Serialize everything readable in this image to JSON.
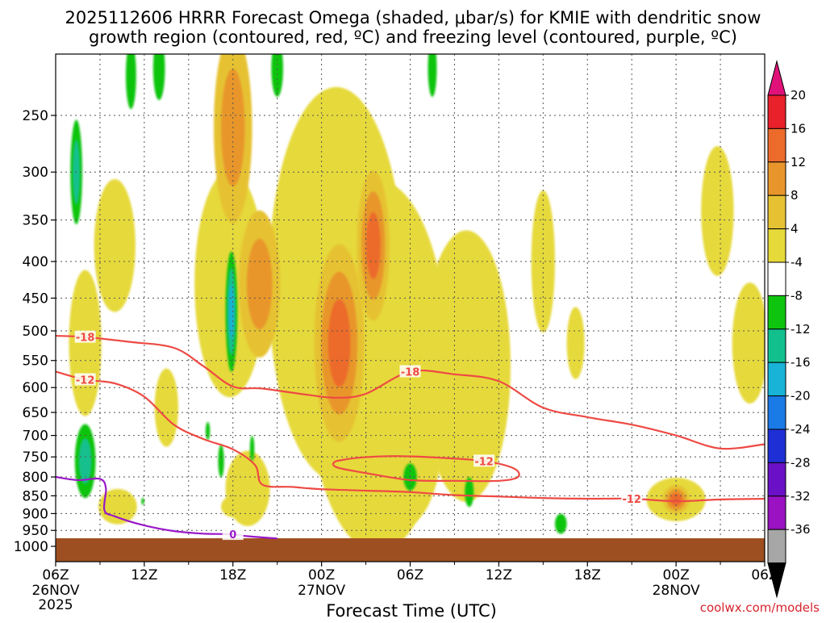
{
  "chart_data": {
    "type": "heatmap",
    "title_line1": "2025112606 HRRR Forecast Omega (shaded, μbar/s) for KMIE with dendritic snow",
    "title_line2": "growth region (contoured, red, ºC) and freezing level (contoured, purple, ºC)",
    "xlabel": "Forecast Time (UTC)",
    "x_forecast_hours": [
      0,
      6,
      12,
      18,
      24,
      30,
      36,
      42,
      48,
      54,
      60
    ],
    "x_tick_labels": [
      "06Z",
      "12Z",
      "18Z",
      "00Z",
      "06Z",
      "12Z",
      "18Z",
      "00Z",
      "06Z"
    ],
    "x_tick_hours": [
      0,
      6,
      12,
      18,
      24,
      30,
      36,
      42,
      48
    ],
    "date_labels": [
      {
        "hour": 0,
        "line1": "26NOV",
        "line2": "2025"
      },
      {
        "hour": 18,
        "line1": "27NOV",
        "line2": ""
      },
      {
        "hour": 42,
        "line1": "28NOV",
        "line2": ""
      }
    ],
    "y_levels_hpa": [
      250,
      300,
      350,
      400,
      450,
      500,
      550,
      600,
      650,
      700,
      750,
      800,
      850,
      900,
      950,
      1000
    ],
    "y_range_hpa": [
      200,
      1000
    ],
    "colorbar": {
      "labels": [
        "20",
        "16",
        "12",
        "8",
        "4",
        "-4",
        "-8",
        "-12",
        "-16",
        "-20",
        "-24",
        "-28",
        "-32",
        "-36"
      ],
      "colors": [
        "#e8212b",
        "#ec6a2a",
        "#e8962c",
        "#e6c233",
        "#e6d93a",
        "#ffffff",
        "#0fc40f",
        "#12c08e",
        "#18b3d6",
        "#1a7ae6",
        "#1e2fd6",
        "#6a10c6",
        "#9a12c2",
        "#a6a6a6"
      ],
      "top_color": "#e0127a",
      "bottom_color": "#000000"
    },
    "omega_blobs": [
      {
        "hour": 12.0,
        "p": 260,
        "value": 10,
        "w": 2.6,
        "h": 110
      },
      {
        "hour": 13.8,
        "p": 430,
        "value": 8,
        "w": 2.8,
        "h": 100
      },
      {
        "hour": 19.2,
        "p": 520,
        "value": 12,
        "w": 3.4,
        "h": 160
      },
      {
        "hour": 21.5,
        "p": 380,
        "value": 12,
        "w": 2.2,
        "h": 90
      },
      {
        "hour": 24.0,
        "p": 800,
        "value": -6,
        "w": 0.9,
        "h": 35
      },
      {
        "hour": 11.9,
        "p": 470,
        "value": -14,
        "w": 0.8,
        "h": 90
      },
      {
        "hour": 42.0,
        "p": 860,
        "value": 12,
        "w": 1.8,
        "h": 40
      },
      {
        "hour": 1.4,
        "p": 300,
        "value": -8,
        "w": 0.8,
        "h": 50
      },
      {
        "hour": 2.0,
        "p": 760,
        "value": -8,
        "w": 1.4,
        "h": 90
      }
    ],
    "contour_minus18": {
      "label": "-18",
      "hours": [
        0,
        2,
        5,
        8,
        10,
        12,
        14,
        17,
        19,
        21,
        24,
        27,
        30,
        33,
        36,
        39,
        42,
        45,
        48
      ],
      "p_hpa": [
        508,
        510,
        518,
        528,
        560,
        598,
        602,
        614,
        620,
        612,
        570,
        575,
        588,
        640,
        660,
        676,
        700,
        730,
        720
      ]
    },
    "contour_minus12": {
      "label": "-12",
      "hours": [
        0,
        2,
        4,
        6,
        8,
        10,
        12,
        13.5,
        14,
        16,
        18,
        21,
        24,
        27,
        30,
        33,
        36,
        39,
        42,
        45,
        48
      ],
      "p_hpa": [
        570,
        585,
        592,
        618,
        676,
        708,
        732,
        770,
        820,
        826,
        832,
        836,
        840,
        848,
        852,
        856,
        858,
        858,
        865,
        860,
        858
      ]
    },
    "contour_minus12_closed": {
      "label": "-12",
      "hours": [
        19,
        20.5,
        23,
        26,
        29,
        31,
        31.3,
        30,
        27,
        24,
        21,
        19
      ],
      "p_hpa": [
        760,
        752,
        748,
        752,
        760,
        778,
        800,
        810,
        810,
        808,
        790,
        775
      ]
    },
    "freezing_level": {
      "label": "0",
      "hours": [
        0,
        1.5,
        3,
        3.4,
        3.3,
        4,
        6,
        8,
        10,
        12,
        13,
        15
      ],
      "p_hpa": [
        800,
        808,
        805,
        830,
        890,
        908,
        935,
        952,
        960,
        962,
        968,
        975
      ]
    },
    "credit": "coolwx.com/models"
  }
}
